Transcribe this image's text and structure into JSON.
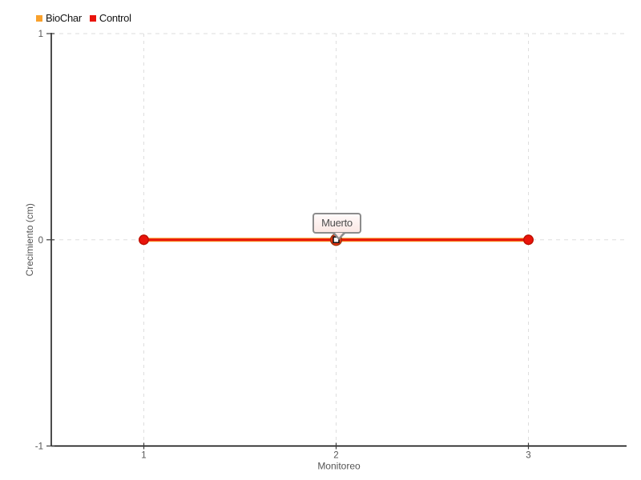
{
  "tooltip": {
    "text": "Muerto"
  },
  "chart_data": {
    "type": "line",
    "title": "",
    "xlabel": "Monitoreo",
    "ylabel": "Crecimiento (cm)",
    "categories": [
      "1",
      "2",
      "3"
    ],
    "x_ticks": [
      "1",
      "2",
      "3"
    ],
    "y_ticks": [
      "-1",
      "0",
      "1"
    ],
    "ylim": [
      -1,
      1
    ],
    "grid": "dashed",
    "legend_position": "top-left",
    "series": [
      {
        "name": "BioChar",
        "color": "#F9A12C",
        "stroke": "#D07D0A",
        "values": [
          0,
          0,
          0
        ]
      },
      {
        "name": "Control",
        "color": "#E9140B",
        "stroke": "#BD0D04",
        "values": [
          0,
          0,
          0
        ]
      }
    ],
    "annotation": {
      "text": "Muerto",
      "x": "2",
      "y": 0,
      "series": "Control"
    },
    "colors": {
      "grid": "#dedede",
      "axis": "#000000",
      "tick": "#3d3d3d",
      "tick_label": "#555555",
      "axis_title": "#555555"
    }
  }
}
